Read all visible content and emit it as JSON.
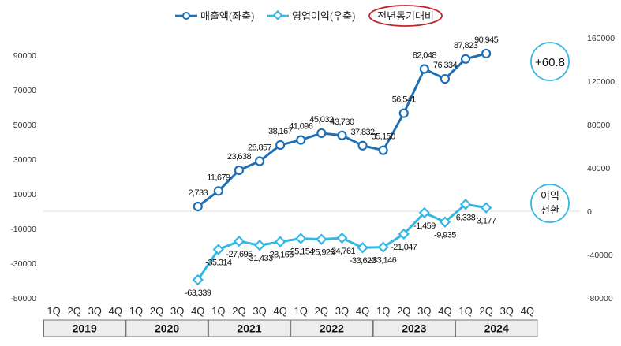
{
  "colors": {
    "sales": "#1F6FB4",
    "profit": "#34B8E3",
    "yoy_ellipse": "#C0262C",
    "grid": "#DDDDDD",
    "axis_box_fill": "#EDEDED"
  },
  "chart_data": {
    "type": "line",
    "legend": [
      "매출액(좌축)",
      "영업이익(우축)"
    ],
    "legend_note": "전년동기대비",
    "callouts": {
      "sales_change": "+60.8",
      "profit_change_line1": "이익",
      "profit_change_line2": "전환"
    },
    "left_axis": {
      "ylim": [
        -50000,
        90000
      ],
      "ticks": [
        "90000",
        "70000",
        "50000",
        "30000",
        "10000",
        "-10000",
        "-30000",
        "-50000"
      ]
    },
    "right_axis": {
      "ylim": [
        -80000,
        160000
      ],
      "ticks": [
        "160000",
        "120000",
        "80000",
        "40000",
        "0",
        "-40000",
        "-80000"
      ]
    },
    "quarters": [
      "1Q",
      "2Q",
      "3Q",
      "4Q",
      "1Q",
      "2Q",
      "3Q",
      "4Q",
      "1Q",
      "2Q",
      "3Q",
      "4Q",
      "1Q",
      "2Q",
      "3Q",
      "4Q",
      "1Q",
      "2Q",
      "3Q",
      "4Q",
      "1Q",
      "2Q",
      "3Q",
      "4Q"
    ],
    "years": [
      "2019",
      "2020",
      "2021",
      "2022",
      "2023",
      "2024"
    ],
    "series": [
      {
        "name": "매출액(좌축)",
        "axis": "left",
        "start_index": 7,
        "values": [
          2733,
          11679,
          23638,
          28857,
          38167,
          41096,
          45032,
          43730,
          37832,
          35150,
          56541,
          82048,
          76334,
          87823,
          90945
        ],
        "labels": [
          "2,733",
          "11,679",
          "23,638",
          "28,857",
          "38,167",
          "41,096",
          "45,032",
          "43,730",
          "37,832",
          "35,150",
          "56,541",
          "82,048",
          "76,334",
          "87,823",
          "90,945"
        ]
      },
      {
        "name": "영업이익(우축)",
        "axis": "right",
        "start_index": 7,
        "values": [
          -63339,
          -35314,
          -27695,
          -31433,
          -28166,
          -25154,
          -25928,
          -24761,
          -33623,
          -33146,
          -21047,
          -1459,
          -9935,
          6338,
          3177
        ],
        "labels": [
          "-63,339",
          "-35,314",
          "-27,695",
          "-31,433",
          "-28,166",
          "-25,154",
          "-25,928",
          "-24,761",
          "-33,623",
          "-33,146",
          "-21,047",
          "-1,459",
          "-9,935",
          "6,338",
          "3,177"
        ]
      }
    ]
  }
}
